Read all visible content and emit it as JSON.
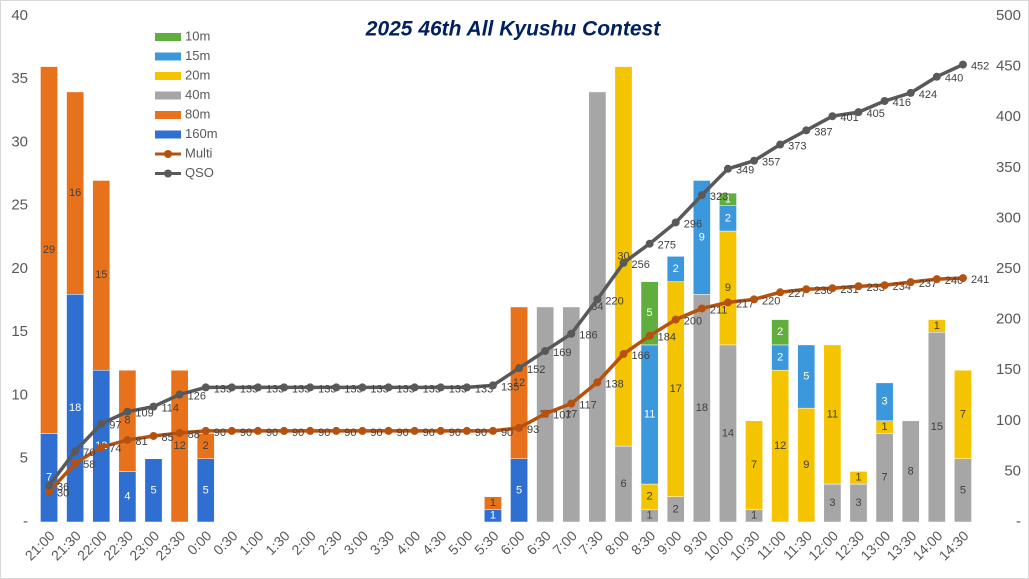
{
  "chart_data": {
    "type": "bar-line",
    "title": "2025 46th All Kyushu Contest",
    "categories": [
      "21:00",
      "21:30",
      "22:00",
      "22:30",
      "23:00",
      "23:30",
      "0:00",
      "0:30",
      "1:00",
      "1:30",
      "2:00",
      "2:30",
      "3:00",
      "3:30",
      "4:00",
      "4:30",
      "5:00",
      "5:30",
      "6:00",
      "6:30",
      "7:00",
      "7:30",
      "8:00",
      "8:30",
      "9:00",
      "9:30",
      "10:00",
      "10:30",
      "11:00",
      "11:30",
      "12:00",
      "12:30",
      "13:00",
      "13:30",
      "14:00",
      "14:30"
    ],
    "series": [
      {
        "name": "160m",
        "color": "#2e6fd1",
        "kind": "bar",
        "values": [
          7,
          18,
          12,
          4,
          5,
          null,
          5,
          null,
          null,
          null,
          null,
          null,
          null,
          null,
          null,
          null,
          null,
          1,
          5,
          null,
          null,
          null,
          null,
          null,
          null,
          null,
          null,
          null,
          null,
          null,
          null,
          null,
          null,
          null,
          null,
          null
        ]
      },
      {
        "name": "80m",
        "color": "#e8721c",
        "kind": "bar",
        "values": [
          29,
          16,
          15,
          8,
          null,
          12,
          2,
          null,
          null,
          null,
          null,
          null,
          null,
          null,
          null,
          null,
          null,
          1,
          12,
          null,
          null,
          null,
          null,
          null,
          null,
          null,
          null,
          null,
          null,
          null,
          null,
          null,
          null,
          null,
          null,
          null
        ]
      },
      {
        "name": "40m",
        "color": "#a6a6a6",
        "kind": "bar",
        "values": [
          null,
          null,
          null,
          null,
          null,
          null,
          null,
          null,
          null,
          null,
          null,
          null,
          null,
          null,
          null,
          null,
          null,
          null,
          null,
          17,
          17,
          34,
          6,
          1,
          2,
          18,
          14,
          1,
          null,
          null,
          3,
          3,
          7,
          8,
          15,
          5
        ]
      },
      {
        "name": "20m",
        "color": "#f5c400",
        "kind": "bar",
        "values": [
          null,
          null,
          null,
          null,
          null,
          null,
          null,
          null,
          null,
          null,
          null,
          null,
          null,
          null,
          null,
          null,
          null,
          null,
          null,
          null,
          null,
          null,
          30,
          2,
          17,
          null,
          9,
          7,
          12,
          9,
          11,
          1,
          1,
          null,
          1,
          7
        ]
      },
      {
        "name": "15m",
        "color": "#3c98dc",
        "kind": "bar",
        "values": [
          null,
          null,
          null,
          null,
          null,
          null,
          null,
          null,
          null,
          null,
          null,
          null,
          null,
          null,
          null,
          null,
          null,
          null,
          null,
          null,
          null,
          null,
          null,
          11,
          2,
          9,
          2,
          null,
          2,
          5,
          null,
          null,
          3,
          null,
          null,
          null
        ]
      },
      {
        "name": "10m",
        "color": "#5fae3e",
        "kind": "bar",
        "values": [
          null,
          null,
          null,
          null,
          null,
          null,
          null,
          null,
          null,
          null,
          null,
          null,
          null,
          null,
          null,
          null,
          null,
          null,
          null,
          null,
          null,
          null,
          null,
          5,
          null,
          null,
          1,
          null,
          2,
          null,
          null,
          null,
          null,
          null,
          null,
          null
        ]
      },
      {
        "name": "Multi",
        "color": "#b5520f",
        "kind": "line",
        "axis": "y2",
        "values": [
          30,
          58,
          74,
          81,
          85,
          88,
          90,
          90,
          90,
          90,
          90,
          90,
          90,
          90,
          90,
          90,
          90,
          90,
          93,
          107,
          117,
          138,
          166,
          184,
          200,
          211,
          217,
          220,
          227,
          230,
          231,
          233,
          234,
          237,
          240,
          241
        ]
      },
      {
        "name": "QSO",
        "color": "#595959",
        "kind": "line",
        "axis": "y2",
        "values": [
          36,
          70,
          97,
          109,
          114,
          126,
          133,
          133,
          133,
          133,
          133,
          133,
          133,
          133,
          133,
          133,
          133,
          135,
          152,
          169,
          186,
          220,
          256,
          275,
          296,
          323,
          349,
          357,
          373,
          387,
          401,
          405,
          416,
          424,
          440,
          452
        ]
      }
    ],
    "ylim": [
      0,
      40
    ],
    "yticks": [
      {
        "value": 0,
        "label": "-"
      },
      5,
      10,
      15,
      20,
      25,
      30,
      35,
      40
    ],
    "y2lim": [
      0,
      500
    ],
    "y2ticks": [
      {
        "value": 0,
        "label": "-"
      },
      50,
      100,
      150,
      200,
      250,
      300,
      350,
      400,
      450,
      500
    ],
    "legend": "top-left",
    "grid": false
  }
}
